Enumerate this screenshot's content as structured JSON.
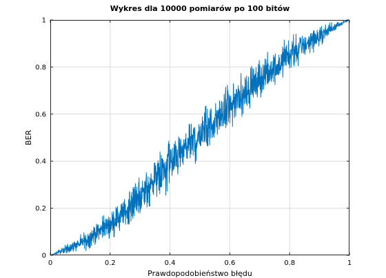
{
  "chart_data": {
    "type": "line",
    "title": "Wykres dla 10000 pomiarów po 100 bitów",
    "xlabel": "Prawdopodobieństwo błędu",
    "ylabel": "BER",
    "xlim": [
      0,
      1
    ],
    "ylim": [
      0,
      1
    ],
    "xticks": [
      0,
      0.2,
      0.4,
      0.6,
      0.8,
      1
    ],
    "yticks": [
      0,
      0.2,
      0.4,
      0.6,
      0.8,
      1
    ],
    "xtick_labels": [
      "0",
      "0.2",
      "0.4",
      "0.6",
      "0.8",
      "1"
    ],
    "ytick_labels": [
      "0",
      "0.2",
      "0.4",
      "0.6",
      "0.8",
      "1"
    ],
    "grid": true,
    "series_color": "#0072BD",
    "series": [
      {
        "n_points": 10000,
        "n_bits": 100,
        "x_start": 0,
        "x_end": 1,
        "trend_x": [
          0,
          0.05,
          0.1,
          0.15,
          0.2,
          0.25,
          0.3,
          0.35,
          0.4,
          0.45,
          0.5,
          0.55,
          0.6,
          0.65,
          0.7,
          0.75,
          0.8,
          0.85,
          0.9,
          0.95,
          1
        ],
        "trend_y": [
          0,
          0.02,
          0.05,
          0.09,
          0.13,
          0.18,
          0.24,
          0.31,
          0.38,
          0.45,
          0.51,
          0.57,
          0.63,
          0.69,
          0.75,
          0.8,
          0.85,
          0.9,
          0.94,
          0.98,
          1
        ],
        "envelope_min": [
          0,
          0,
          0,
          0.02,
          0.05,
          0.08,
          0.13,
          0.19,
          0.24,
          0.31,
          0.38,
          0.43,
          0.5,
          0.56,
          0.62,
          0.69,
          0.75,
          0.8,
          0.86,
          0.94,
          1
        ],
        "envelope_max": [
          0,
          0.05,
          0.1,
          0.16,
          0.22,
          0.29,
          0.37,
          0.45,
          0.53,
          0.59,
          0.65,
          0.71,
          0.76,
          0.82,
          0.87,
          0.91,
          0.95,
          0.98,
          1,
          1,
          1
        ]
      }
    ]
  }
}
